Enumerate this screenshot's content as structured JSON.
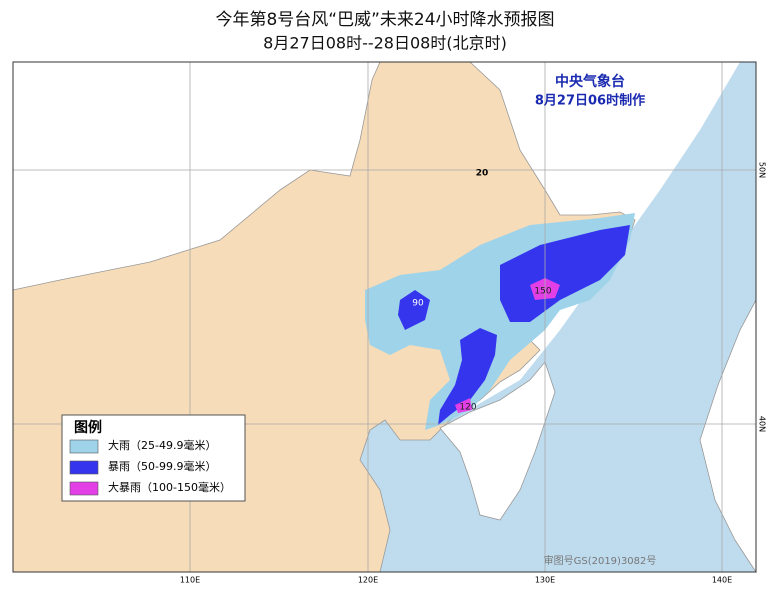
{
  "header": {
    "title": "今年第8号台风“巴威”未来24小时降水预报图",
    "subtitle": "8月27日08时--28日08时(北京时)"
  },
  "issuer": {
    "name": "中央气象台",
    "time": "8月27日06时制作"
  },
  "legend": {
    "title": "图例",
    "items": [
      {
        "label": "大雨（25-49.9毫米）",
        "color": "#9fd3ea"
      },
      {
        "label": "暴雨（50-99.9毫米）",
        "color": "#3535ee"
      },
      {
        "label": "大暴雨（100-150毫米）",
        "color": "#e23fe6"
      }
    ]
  },
  "map_labels": {
    "contours": [
      "20",
      "90",
      "150",
      "120"
    ]
  },
  "axes": {
    "longitudes": [
      "110E",
      "120E",
      "130E",
      "140E"
    ],
    "latitudes": [
      "50N",
      "40N"
    ]
  },
  "review_number": "审图号GS(2019)3082号"
}
